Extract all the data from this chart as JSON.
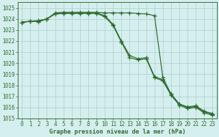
{
  "xlabel": "Graphe pression niveau de la mer (hPa)",
  "x": [
    0,
    1,
    2,
    3,
    4,
    5,
    6,
    7,
    8,
    9,
    10,
    11,
    12,
    13,
    14,
    15,
    16,
    17,
    18,
    19,
    20,
    21,
    22,
    23
  ],
  "main_y": [
    1023.7,
    1023.8,
    1023.8,
    1024.0,
    1024.5,
    1024.55,
    1024.55,
    1024.55,
    1024.55,
    1024.55,
    1024.3,
    1023.5,
    1022.0,
    1020.7,
    1020.4,
    1020.5,
    1018.8,
    1018.5,
    1017.2,
    1016.3,
    1016.0,
    1016.1,
    1015.6,
    1015.4
  ],
  "upper_y": [
    1023.7,
    1023.8,
    1023.85,
    1024.0,
    1024.55,
    1024.6,
    1024.6,
    1024.6,
    1024.6,
    1024.6,
    1024.55,
    1024.55,
    1024.55,
    1024.55,
    1024.5,
    1024.45,
    1024.3,
    1018.7,
    1017.2,
    1016.3,
    1016.05,
    1016.15,
    1015.65,
    1015.45
  ],
  "lower_y": [
    1023.7,
    1023.8,
    1023.75,
    1024.0,
    1024.45,
    1024.5,
    1024.5,
    1024.5,
    1024.5,
    1024.5,
    1024.2,
    1023.4,
    1021.9,
    1020.5,
    1020.3,
    1020.4,
    1018.7,
    1018.4,
    1017.1,
    1016.2,
    1015.9,
    1016.0,
    1015.5,
    1015.3
  ],
  "line_color": "#2d6a2d",
  "bg_color": "#d5eeee",
  "grid_color": "#aacccc",
  "ylim": [
    1015,
    1025.5
  ],
  "yticks": [
    1015,
    1016,
    1017,
    1018,
    1019,
    1020,
    1021,
    1022,
    1023,
    1024,
    1025
  ],
  "xticks": [
    0,
    1,
    2,
    3,
    4,
    5,
    6,
    7,
    8,
    9,
    10,
    11,
    12,
    13,
    14,
    15,
    16,
    17,
    18,
    19,
    20,
    21,
    22,
    23
  ],
  "line_width": 0.9,
  "marker": "+",
  "marker_size": 4,
  "marker_edge_width": 0.9,
  "tick_fontsize": 5.5,
  "xlabel_fontsize": 6.2
}
